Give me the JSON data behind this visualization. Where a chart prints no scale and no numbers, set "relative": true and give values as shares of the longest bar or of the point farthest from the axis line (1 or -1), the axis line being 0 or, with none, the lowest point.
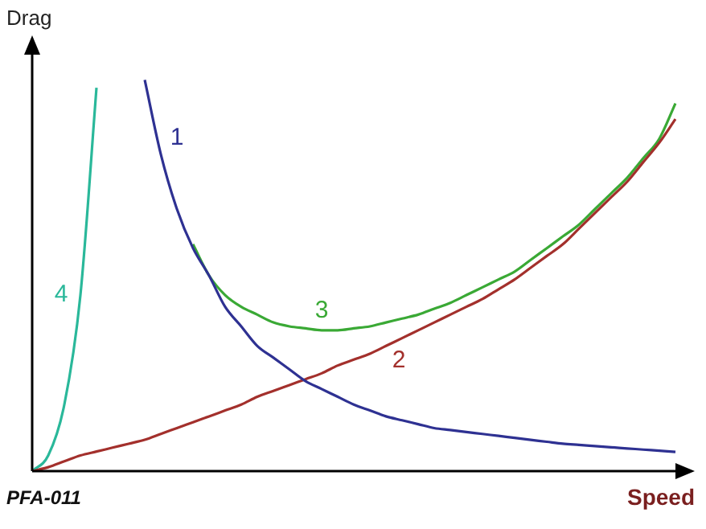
{
  "chart_data": {
    "type": "line",
    "relative": true,
    "xlabel": "Speed",
    "ylabel": "Drag",
    "annotations": [
      "PFA-011"
    ],
    "tick_labels": false,
    "legend": false,
    "marker": "none",
    "line_style": "solid",
    "categories": [
      null,
      null,
      null,
      null,
      null,
      null,
      null,
      null,
      null,
      null,
      null,
      null,
      null,
      null,
      null,
      null,
      null,
      null,
      null,
      null,
      null,
      null,
      null,
      null,
      null,
      null,
      null,
      null,
      null,
      null,
      null,
      null,
      null,
      null,
      null,
      null,
      null,
      null,
      null,
      null,
      null
    ],
    "series": [
      {
        "name": "1",
        "color": "#2e3192",
        "values": [
          null,
          null,
          null,
          null,
          null,
          null,
          null,
          1.0,
          0.81,
          0.67,
          0.57,
          0.5,
          0.42,
          0.37,
          0.32,
          0.29,
          0.26,
          0.23,
          0.21,
          0.19,
          0.17,
          0.155,
          0.14,
          0.13,
          0.12,
          0.11,
          0.105,
          0.1,
          0.095,
          0.09,
          0.085,
          0.08,
          0.075,
          0.07,
          0.067,
          0.064,
          0.061,
          0.058,
          0.055,
          0.052,
          0.049
        ]
      },
      {
        "name": "2",
        "color": "#a3302c",
        "values": [
          0,
          0.01,
          0.025,
          0.04,
          0.05,
          0.06,
          0.07,
          0.08,
          0.095,
          0.11,
          0.125,
          0.14,
          0.155,
          0.17,
          0.19,
          0.205,
          0.22,
          0.235,
          0.25,
          0.27,
          0.285,
          0.3,
          0.32,
          0.34,
          0.36,
          0.38,
          0.4,
          0.42,
          0.44,
          0.465,
          0.49,
          0.52,
          0.55,
          0.58,
          0.62,
          0.66,
          0.7,
          0.74,
          0.79,
          0.84,
          0.9
        ]
      },
      {
        "name": "3",
        "color": "#3aa935",
        "values": [
          null,
          null,
          null,
          null,
          null,
          null,
          null,
          null,
          null,
          null,
          0.58,
          0.5,
          0.45,
          0.42,
          0.4,
          0.38,
          0.37,
          0.365,
          0.36,
          0.36,
          0.365,
          0.37,
          0.38,
          0.39,
          0.4,
          0.415,
          0.43,
          0.45,
          0.47,
          0.49,
          0.51,
          0.54,
          0.57,
          0.6,
          0.63,
          0.67,
          0.71,
          0.75,
          0.8,
          0.85,
          0.94
        ]
      },
      {
        "name": "4",
        "color": "#2ab89a",
        "values": [
          0,
          0.04,
          0.17,
          0.45,
          0.98,
          null,
          null,
          null,
          null,
          null,
          null,
          null,
          null,
          null,
          null,
          null,
          null,
          null,
          null,
          null,
          null,
          null,
          null,
          null,
          null,
          null,
          null,
          null,
          null,
          null,
          null,
          null,
          null,
          null,
          null,
          null,
          null,
          null,
          null,
          null,
          null
        ]
      }
    ]
  }
}
